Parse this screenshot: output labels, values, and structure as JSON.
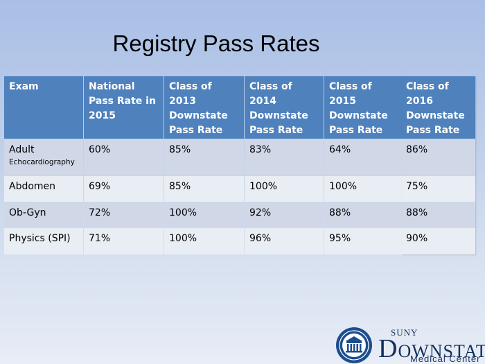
{
  "slide": {
    "title": "Registry Pass Rates"
  },
  "table": {
    "headers": [
      "Exam",
      "National Pass Rate in 2015",
      "Class of 2013 Downstate Pass Rate",
      "Class of 2014 Downstate Pass Rate",
      "Class of 2015 Downstate Pass Rate",
      "Class of 2016 Downstate Pass Rate"
    ],
    "rows": [
      {
        "exam": "Adult",
        "exam_sub": "Echocardiography",
        "values": [
          "60%",
          "85%",
          "83%",
          "64%",
          "86%"
        ]
      },
      {
        "exam": "Abdomen",
        "exam_sub": "",
        "values": [
          "69%",
          "85%",
          "100%",
          "100%",
          "75%"
        ]
      },
      {
        "exam": "Ob-Gyn",
        "exam_sub": "",
        "values": [
          "72%",
          "100%",
          "92%",
          "88%",
          "88%"
        ]
      },
      {
        "exam": "Physics (SPI)",
        "exam_sub": "",
        "values": [
          "71%",
          "100%",
          "96%",
          "95%",
          "90%"
        ]
      }
    ]
  },
  "logo": {
    "line1": "SUNY",
    "line2_initial": "D",
    "line2_rest": "OWNSTATE",
    "line3": "Medical Center"
  },
  "colors": {
    "header_bg": "#4f81bd",
    "row_dark": "#d0d8e8",
    "row_light": "#e9edf4",
    "logo_navy": "#14305f"
  }
}
